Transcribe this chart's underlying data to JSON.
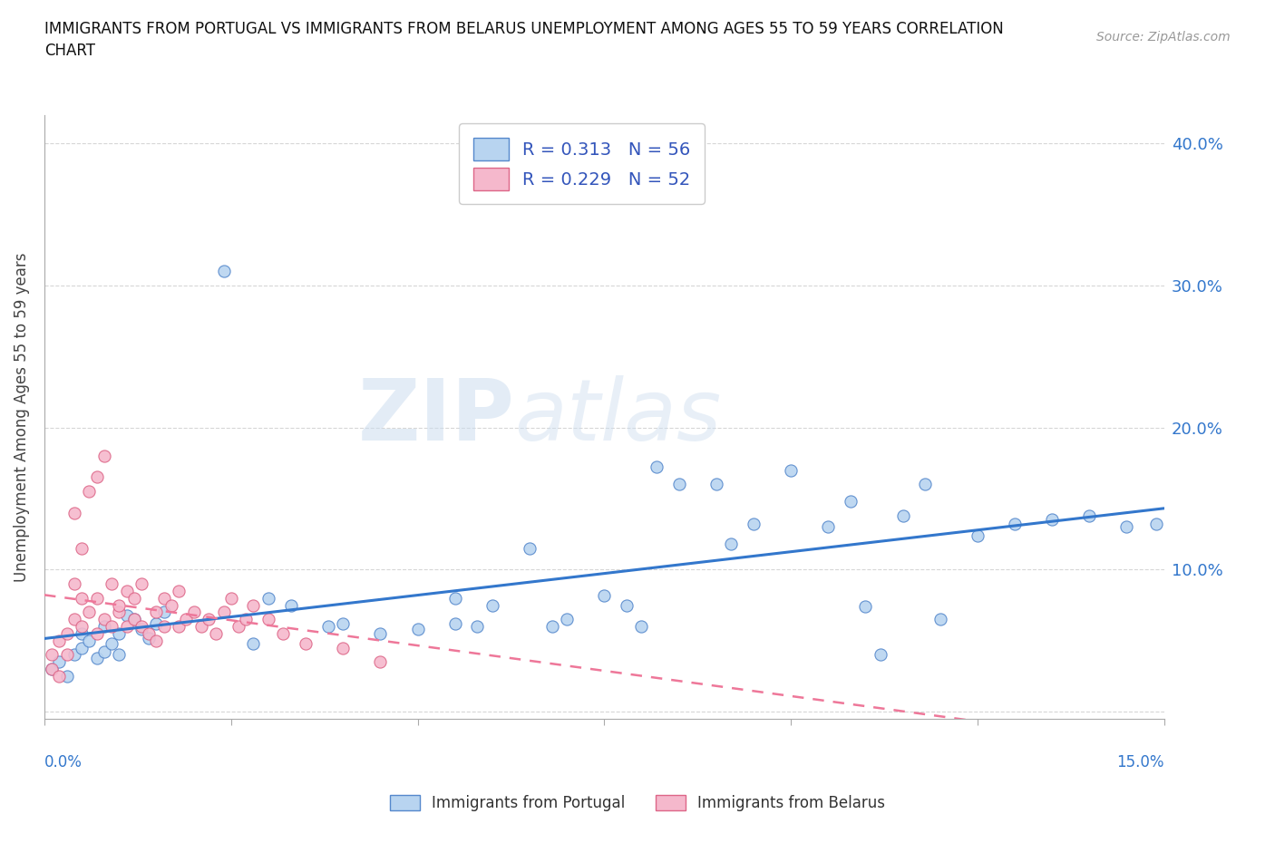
{
  "title": "IMMIGRANTS FROM PORTUGAL VS IMMIGRANTS FROM BELARUS UNEMPLOYMENT AMONG AGES 55 TO 59 YEARS CORRELATION\nCHART",
  "source": "Source: ZipAtlas.com",
  "ylabel": "Unemployment Among Ages 55 to 59 years",
  "xlim": [
    0.0,
    0.15
  ],
  "ylim": [
    -0.005,
    0.42
  ],
  "portugal_color": "#b8d4f0",
  "belarus_color": "#f5b8cc",
  "portugal_edge": "#5588cc",
  "belarus_edge": "#dd6688",
  "trend_portugal_color": "#3377cc",
  "trend_belarus_color": "#ee7799",
  "R_portugal": 0.313,
  "N_portugal": 56,
  "R_belarus": 0.229,
  "N_belarus": 52,
  "portugal_x": [
    0.001,
    0.002,
    0.003,
    0.004,
    0.005,
    0.005,
    0.006,
    0.007,
    0.008,
    0.008,
    0.009,
    0.01,
    0.01,
    0.011,
    0.012,
    0.013,
    0.014,
    0.015,
    0.016,
    0.024,
    0.028,
    0.03,
    0.033,
    0.038,
    0.04,
    0.045,
    0.05,
    0.055,
    0.055,
    0.058,
    0.06,
    0.065,
    0.068,
    0.07,
    0.075,
    0.078,
    0.08,
    0.082,
    0.085,
    0.09,
    0.092,
    0.095,
    0.1,
    0.105,
    0.108,
    0.11,
    0.112,
    0.115,
    0.118,
    0.12,
    0.125,
    0.13,
    0.135,
    0.14,
    0.145,
    0.149
  ],
  "portugal_y": [
    0.03,
    0.035,
    0.025,
    0.04,
    0.055,
    0.045,
    0.05,
    0.038,
    0.06,
    0.042,
    0.048,
    0.055,
    0.04,
    0.068,
    0.065,
    0.058,
    0.052,
    0.062,
    0.07,
    0.31,
    0.048,
    0.08,
    0.075,
    0.06,
    0.062,
    0.055,
    0.058,
    0.08,
    0.062,
    0.06,
    0.075,
    0.115,
    0.06,
    0.065,
    0.082,
    0.075,
    0.06,
    0.172,
    0.16,
    0.16,
    0.118,
    0.132,
    0.17,
    0.13,
    0.148,
    0.074,
    0.04,
    0.138,
    0.16,
    0.065,
    0.124,
    0.132,
    0.135,
    0.138,
    0.13,
    0.132
  ],
  "belarus_x": [
    0.001,
    0.001,
    0.002,
    0.002,
    0.003,
    0.003,
    0.004,
    0.004,
    0.004,
    0.005,
    0.005,
    0.005,
    0.006,
    0.006,
    0.007,
    0.007,
    0.007,
    0.008,
    0.008,
    0.009,
    0.009,
    0.01,
    0.01,
    0.011,
    0.011,
    0.012,
    0.012,
    0.013,
    0.013,
    0.014,
    0.015,
    0.015,
    0.016,
    0.016,
    0.017,
    0.018,
    0.018,
    0.019,
    0.02,
    0.021,
    0.022,
    0.023,
    0.024,
    0.025,
    0.026,
    0.027,
    0.028,
    0.03,
    0.032,
    0.035,
    0.04,
    0.045
  ],
  "belarus_y": [
    0.03,
    0.04,
    0.025,
    0.05,
    0.055,
    0.04,
    0.14,
    0.09,
    0.065,
    0.115,
    0.08,
    0.06,
    0.155,
    0.07,
    0.165,
    0.08,
    0.055,
    0.18,
    0.065,
    0.09,
    0.06,
    0.07,
    0.075,
    0.085,
    0.06,
    0.08,
    0.065,
    0.09,
    0.06,
    0.055,
    0.07,
    0.05,
    0.08,
    0.06,
    0.075,
    0.085,
    0.06,
    0.065,
    0.07,
    0.06,
    0.065,
    0.055,
    0.07,
    0.08,
    0.06,
    0.065,
    0.075,
    0.065,
    0.055,
    0.048,
    0.045,
    0.035
  ],
  "watermark_zip": "ZIP",
  "watermark_atlas": "atlas",
  "legend_text_color": "#3355bb",
  "grid_color": "#cccccc",
  "background_color": "#ffffff",
  "ytick_positions": [
    0.0,
    0.1,
    0.2,
    0.3,
    0.4
  ],
  "ytick_labels": [
    "",
    "10.0%",
    "20.0%",
    "30.0%",
    "40.0%"
  ],
  "xtick_positions": [
    0.0,
    0.025,
    0.05,
    0.075,
    0.1,
    0.125,
    0.15
  ]
}
